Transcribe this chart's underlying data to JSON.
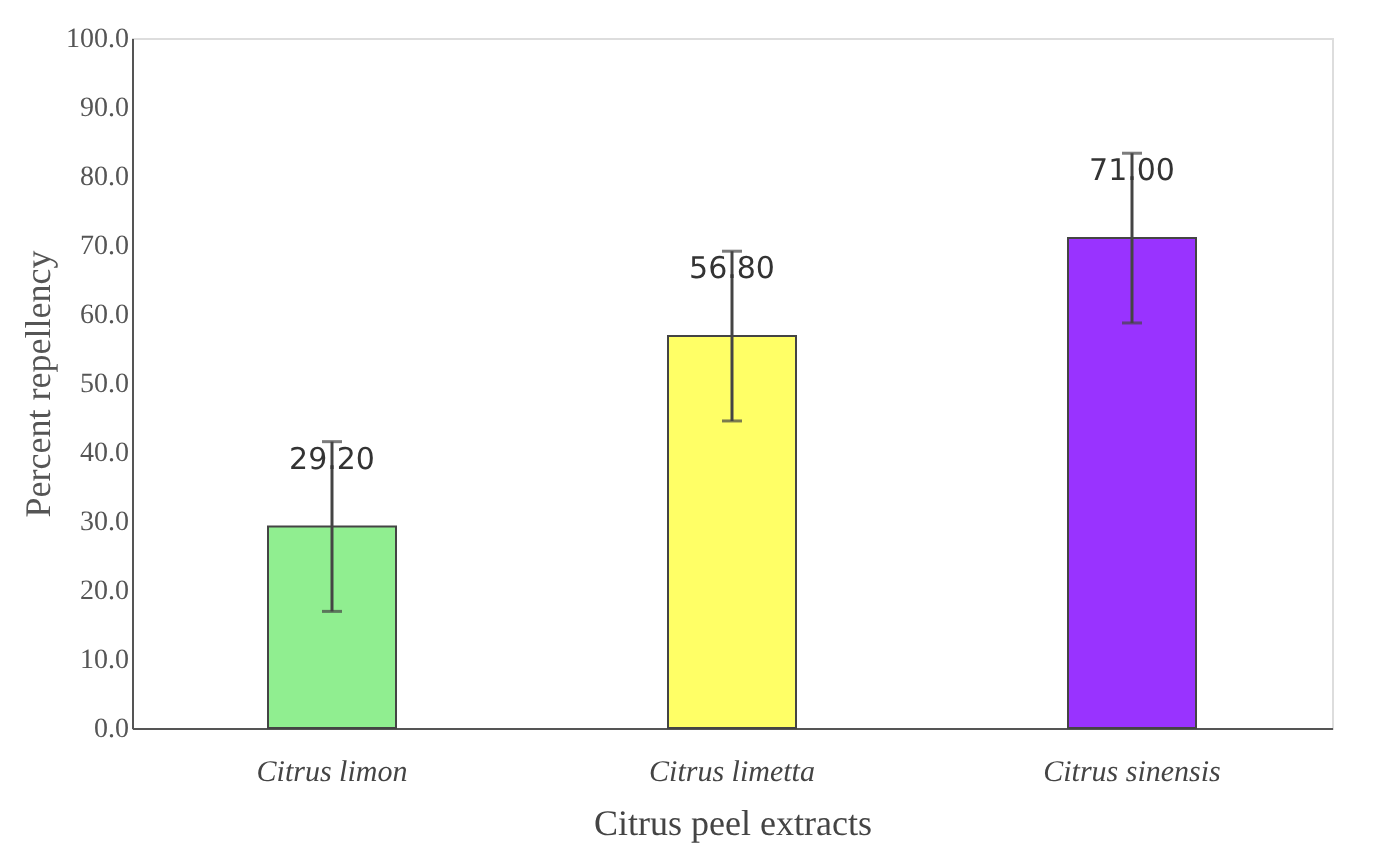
{
  "chart_data": {
    "type": "bar",
    "xlabel": "Citrus peel extracts",
    "ylabel": "Percent repellency",
    "categories": [
      "Citrus limon",
      "Citrus limetta",
      "Citrus sinensis"
    ],
    "values": [
      29.2,
      56.8,
      71.0
    ],
    "value_labels": [
      "29.20",
      "56.80",
      "71.00"
    ],
    "errors": [
      12.3,
      12.3,
      12.3
    ],
    "colors": [
      "#90ee90",
      "#ffff66",
      "#9933ff"
    ],
    "ylim": [
      0,
      100
    ],
    "yticks": [
      {
        "value": 0,
        "label": "0.0"
      },
      {
        "value": 10,
        "label": "10.0"
      },
      {
        "value": 20,
        "label": "20.0"
      },
      {
        "value": 30,
        "label": "30.0"
      },
      {
        "value": 40,
        "label": "40.0"
      },
      {
        "value": 50,
        "label": "50.0"
      },
      {
        "value": 60,
        "label": "60.0"
      },
      {
        "value": 70,
        "label": "70.0"
      },
      {
        "value": 80,
        "label": "80.0"
      },
      {
        "value": 90,
        "label": "90.0"
      },
      {
        "value": 100,
        "label": "100.0"
      }
    ],
    "grid": false,
    "legend": false
  }
}
